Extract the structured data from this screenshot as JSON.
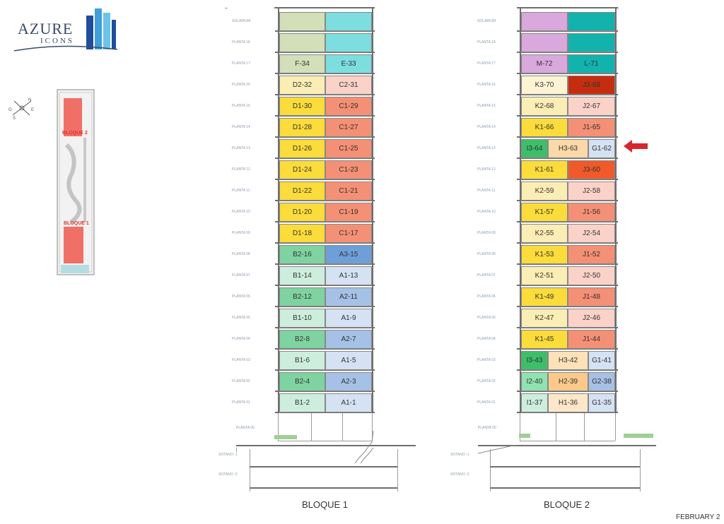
{
  "logo": {
    "brand": "AZURE",
    "sub": "ICONS",
    "colors": [
      "#1e4e9c",
      "#3f9fd8",
      "#6cc4ea"
    ]
  },
  "site_plan": {
    "labels": [
      "BLOQUE 2",
      "BLOQUE 1"
    ],
    "compass": [
      "N",
      "E",
      "S",
      "O"
    ]
  },
  "blocks": [
    {
      "title": "BLOQUE 1",
      "floors_top_down": [
        "SOLARIUM",
        "PLANTA 18",
        "PLANTA 17",
        "PLANTA 16",
        "PLANTA 15",
        "PLANTA 14",
        "PLANTA 13",
        "PLANTA 12",
        "PLANTA 11",
        "PLANTA 10",
        "PLANTA 09",
        "PLANTA 08",
        "PLANTA 07",
        "PLANTA 06",
        "PLANTA 05",
        "PLANTA 04",
        "PLANTA 03",
        "PLANTA 02",
        "PLANTA 01"
      ],
      "lower_levels": [
        "PLANTA 00",
        "SOTANO -1",
        "SOTANO -2"
      ],
      "rows": [
        [
          {
            "label": "",
            "color": "#d2dfb8"
          },
          {
            "label": "",
            "color": "#7ddee0"
          }
        ],
        [
          {
            "label": "",
            "color": "#d2dfb8"
          },
          {
            "label": "",
            "color": "#7ddee0"
          }
        ],
        [
          {
            "label": "F-34",
            "color": "#d2dfb8"
          },
          {
            "label": "E-33",
            "color": "#7ddee0"
          }
        ],
        [
          {
            "label": "D2-32",
            "color": "#fbeeb4"
          },
          {
            "label": "C2-31",
            "color": "#fbd2c8"
          }
        ],
        [
          {
            "label": "D1-30",
            "color": "#fbdc3a"
          },
          {
            "label": "C1-29",
            "color": "#f49075"
          }
        ],
        [
          {
            "label": "D1-28",
            "color": "#fbdc3a"
          },
          {
            "label": "C1-27",
            "color": "#f49075"
          }
        ],
        [
          {
            "label": "D1-26",
            "color": "#fbdc3a"
          },
          {
            "label": "C1-25",
            "color": "#f49075"
          }
        ],
        [
          {
            "label": "D1-24",
            "color": "#fbdc3a"
          },
          {
            "label": "C1-23",
            "color": "#f49075"
          }
        ],
        [
          {
            "label": "D1-22",
            "color": "#fbdc3a"
          },
          {
            "label": "C1-21",
            "color": "#f49075"
          }
        ],
        [
          {
            "label": "D1-20",
            "color": "#fbdc3a"
          },
          {
            "label": "C1-19",
            "color": "#f49075"
          }
        ],
        [
          {
            "label": "D1-18",
            "color": "#fbdc3a"
          },
          {
            "label": "C1-17",
            "color": "#f49075"
          }
        ],
        [
          {
            "label": "B2-16",
            "color": "#7fd3a1"
          },
          {
            "label": "A3-15",
            "color": "#6f9fd8"
          }
        ],
        [
          {
            "label": "B1-14",
            "color": "#cdeedd"
          },
          {
            "label": "A1-13",
            "color": "#d4e2f3"
          }
        ],
        [
          {
            "label": "B2-12",
            "color": "#7fd3a1"
          },
          {
            "label": "A2-11",
            "color": "#a6c1e6"
          }
        ],
        [
          {
            "label": "B1-10",
            "color": "#cdeedd"
          },
          {
            "label": "A1-9",
            "color": "#d4e2f3"
          }
        ],
        [
          {
            "label": "B2-8",
            "color": "#7fd3a1"
          },
          {
            "label": "A2-7",
            "color": "#a6c1e6"
          }
        ],
        [
          {
            "label": "B1-6",
            "color": "#cdeedd"
          },
          {
            "label": "A1-5",
            "color": "#d4e2f3"
          }
        ],
        [
          {
            "label": "B2-4",
            "color": "#7fd3a1"
          },
          {
            "label": "A2-3",
            "color": "#a6c1e6"
          }
        ],
        [
          {
            "label": "B1-2",
            "color": "#cdeedd"
          },
          {
            "label": "A1-1",
            "color": "#d4e2f3"
          }
        ]
      ]
    },
    {
      "title": "BLOQUE 2",
      "floors_top_down": [
        "SOLARIUM",
        "PLANTA 18",
        "PLANTA 17",
        "PLANTA 16",
        "PLANTA 15",
        "PLANTA 14",
        "PLANTA 13",
        "PLANTA 12",
        "PLANTA 11",
        "PLANTA 10",
        "PLANTA 09",
        "PLANTA 08",
        "PLANTA 07",
        "PLANTA 06",
        "PLANTA 05",
        "PLANTA 04",
        "PLANTA 03",
        "PLANTA 02",
        "PLANTA 01"
      ],
      "lower_levels": [
        "PLANTA 00",
        "SOTANO -1",
        "SOTANO -2"
      ],
      "rows": [
        [
          {
            "label": "",
            "color": "#d9a8dc"
          },
          {
            "label": "",
            "color": "#12b3ad"
          }
        ],
        [
          {
            "label": "",
            "color": "#d9a8dc"
          },
          {
            "label": "",
            "color": "#12b3ad"
          }
        ],
        [
          {
            "label": "M-72",
            "color": "#d9a8dc"
          },
          {
            "label": "L-71",
            "color": "#12b3ad"
          }
        ],
        [
          {
            "label": "K3-70",
            "color": "#fdf4d4"
          },
          {
            "label": "J3-69",
            "color": "#c42e0f"
          }
        ],
        [
          {
            "label": "K2-68",
            "color": "#fbeeb4"
          },
          {
            "label": "J2-67",
            "color": "#fbd2c8"
          }
        ],
        [
          {
            "label": "K1-66",
            "color": "#fbdc3a"
          },
          {
            "label": "J1-65",
            "color": "#f49075"
          }
        ],
        [
          {
            "label": "I3-64",
            "color": "#3dbf6a"
          },
          {
            "label": "H3-63",
            "color": "#fbd9a8"
          },
          {
            "label": "G1-62",
            "color": "#d4e2f3"
          }
        ],
        [
          {
            "label": "K1-61",
            "color": "#fbdc3a"
          },
          {
            "label": "J3-60",
            "color": "#f05a2a"
          }
        ],
        [
          {
            "label": "K2-59",
            "color": "#fbeeb4"
          },
          {
            "label": "J2-58",
            "color": "#fbd2c8"
          }
        ],
        [
          {
            "label": "K1-57",
            "color": "#fbdc3a"
          },
          {
            "label": "J1-56",
            "color": "#f49075"
          }
        ],
        [
          {
            "label": "K2-55",
            "color": "#fbeeb4"
          },
          {
            "label": "J2-54",
            "color": "#fbd2c8"
          }
        ],
        [
          {
            "label": "K1-53",
            "color": "#fbdc3a"
          },
          {
            "label": "J1-52",
            "color": "#f49075"
          }
        ],
        [
          {
            "label": "K2-51",
            "color": "#fbeeb4"
          },
          {
            "label": "J2-50",
            "color": "#fbd2c8"
          }
        ],
        [
          {
            "label": "K1-49",
            "color": "#fbdc3a"
          },
          {
            "label": "J1-48",
            "color": "#f49075"
          }
        ],
        [
          {
            "label": "K2-47",
            "color": "#fbeeb4"
          },
          {
            "label": "J2-46",
            "color": "#fbd2c8"
          }
        ],
        [
          {
            "label": "K1-45",
            "color": "#fbdc3a"
          },
          {
            "label": "J1-44",
            "color": "#f49075"
          }
        ],
        [
          {
            "label": "I3-43",
            "color": "#3dbf6a"
          },
          {
            "label": "H3-42",
            "color": "#fde2b8"
          },
          {
            "label": "G1-41",
            "color": "#d4e2f3"
          }
        ],
        [
          {
            "label": "I2-40",
            "color": "#8fe3b0"
          },
          {
            "label": "H2-39",
            "color": "#fbc98a"
          },
          {
            "label": "G2-38",
            "color": "#a6c1e6"
          }
        ],
        [
          {
            "label": "I1-37",
            "color": "#cdeedd"
          },
          {
            "label": "H1-36",
            "color": "#fde7c9"
          },
          {
            "label": "G1-35",
            "color": "#d4e2f3"
          }
        ]
      ]
    }
  ],
  "indicator": {
    "color": "#d8262e"
  },
  "footer": {
    "text": "FEBRUARY 2"
  }
}
